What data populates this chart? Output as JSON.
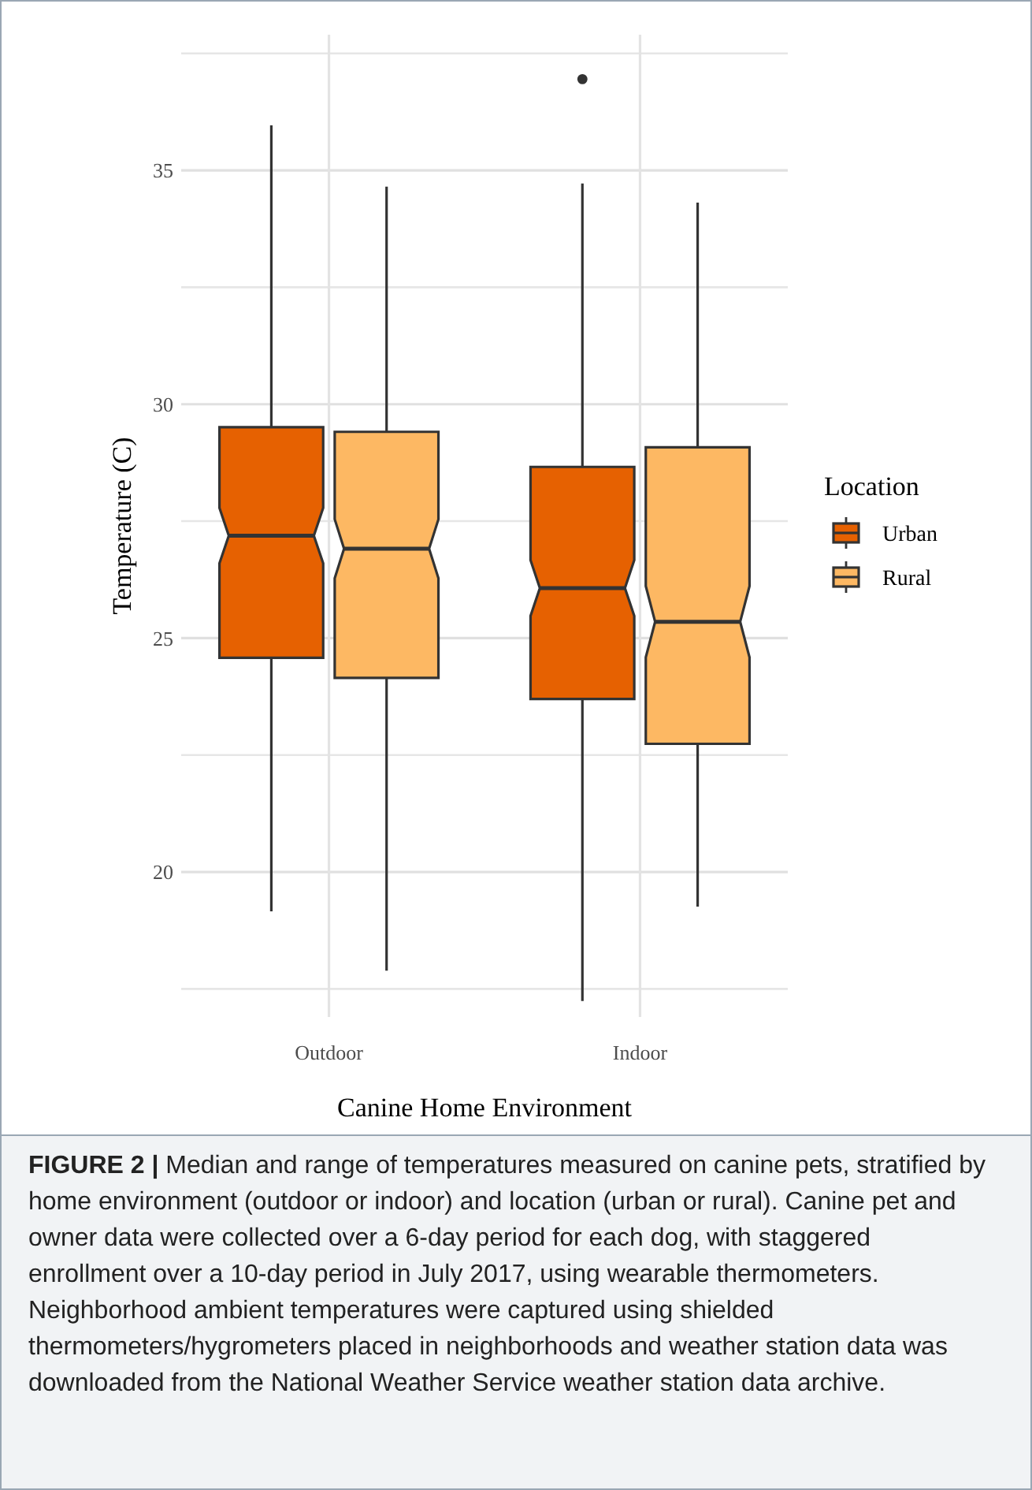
{
  "chart_data": {
    "type": "box",
    "categories": [
      "Outdoor",
      "Indoor"
    ],
    "series": [
      {
        "name": "Urban",
        "color": "#e66101",
        "boxes": [
          {
            "low": 19.16,
            "q1": 24.58,
            "median": 27.19,
            "q3": 29.51,
            "high": 35.96
          },
          {
            "low": 17.24,
            "q1": 23.7,
            "median": 26.07,
            "q3": 28.66,
            "high": 34.72,
            "outliers": [
              36.95
            ]
          }
        ]
      },
      {
        "name": "Rural",
        "color": "#fdb863",
        "boxes": [
          {
            "low": 17.89,
            "q1": 24.15,
            "median": 26.91,
            "q3": 29.41,
            "high": 34.65
          },
          {
            "low": 19.26,
            "q1": 22.74,
            "median": 25.35,
            "q3": 29.08,
            "high": 34.31
          }
        ]
      }
    ],
    "ylim": [
      16.9,
      37.9
    ],
    "yticks": [
      {
        "value": 17.5,
        "label": null
      },
      20,
      {
        "value": 22.5,
        "label": null
      },
      25,
      {
        "value": 27.5,
        "label": null
      },
      30,
      {
        "value": 32.5,
        "label": null
      },
      35,
      {
        "value": 37.5,
        "label": null
      }
    ],
    "grid": true,
    "legend": "right",
    "ylabel": "Temperature (C)",
    "xlabel": "Canine Home Environment",
    "legend_title": "Location",
    "annotations": [
      "FIGURE 2 | Median and range of temperatures measured on canine pets, stratified by home environment (outdoor or indoor) and location (urban or rural). Canine pet and owner data were collected over a 6-day period for each dog, with staggered enrollment over a 10-day period in July 2017, using wearable thermometers. Neighborhood ambient temperatures were captured using shielded thermometers/hygrometers placed in neighborhoods and weather station data was downloaded from the National Weather Service weather station data archive."
    ]
  }
}
